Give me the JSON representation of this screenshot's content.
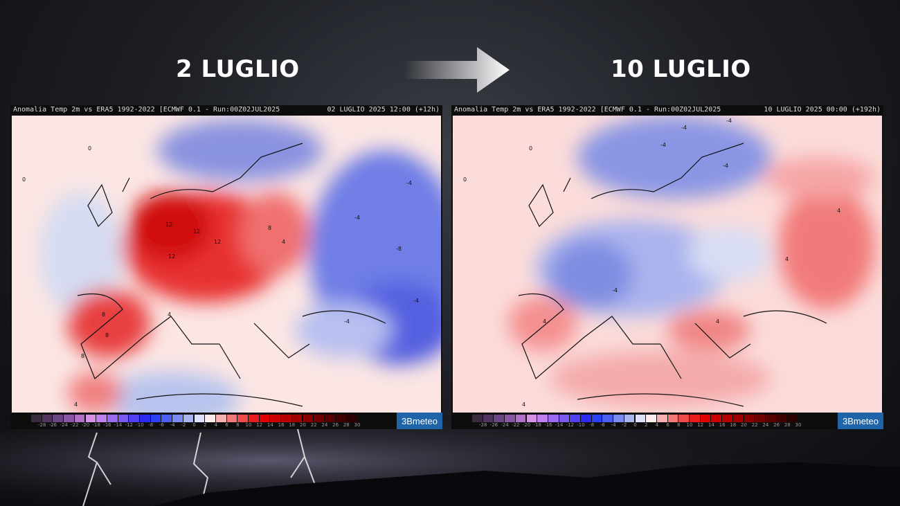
{
  "titles": {
    "left": "2 LUGLIO",
    "right": "10 LUGLIO"
  },
  "maps": [
    {
      "header_left": "Anomalia Temp 2m vs ERA5 1992-2022 [ECMWF 0.1 - Run:00Z02JUL2025",
      "header_right": "02 LUGLIO 2025 12:00 (+12h)",
      "contour_labels": [
        "12",
        "12",
        "12",
        "12",
        "8",
        "8",
        "8",
        "8",
        "4",
        "4",
        "4",
        "0",
        "0",
        "-4",
        "-4",
        "-4",
        "-4",
        "-8"
      ]
    },
    {
      "header_left": "Anomalia Temp 2m vs ERA5 1992-2022 [ECMWF 0.1 - Run:00Z02JUL2025",
      "header_right": "10 LUGLIO 2025 00:00 (+192h)",
      "contour_labels": [
        "4",
        "4",
        "4",
        "4",
        "4",
        "0",
        "0",
        "-4",
        "-4",
        "-4",
        "-4",
        "-4"
      ]
    }
  ],
  "legend": {
    "ticks": [
      "-28",
      "-26",
      "-24",
      "-22",
      "-20",
      "-18",
      "-16",
      "-14",
      "-12",
      "-10",
      "-8",
      "-6",
      "-4",
      "-2",
      "0",
      "2",
      "4",
      "6",
      "8",
      "10",
      "12",
      "14",
      "16",
      "18",
      "20",
      "22",
      "24",
      "26",
      "28",
      "30"
    ],
    "colors": [
      "#3a2a40",
      "#4f3560",
      "#6a4585",
      "#8a55a5",
      "#b070c5",
      "#d690e5",
      "#c080f0",
      "#9a6af0",
      "#7a5af0",
      "#5040f0",
      "#2a2af0",
      "#2a40f5",
      "#4a5ff0",
      "#7a8af0",
      "#aab5f0",
      "#dde0f8",
      "#fbecec",
      "#f8b0b0",
      "#f47a7a",
      "#ee4a4a",
      "#e81c1c",
      "#e00000",
      "#cc0000",
      "#b80000",
      "#a00000",
      "#8a0000",
      "#700000",
      "#580000",
      "#400000",
      "#2a0000"
    ],
    "logo": "3Bmeteo"
  }
}
